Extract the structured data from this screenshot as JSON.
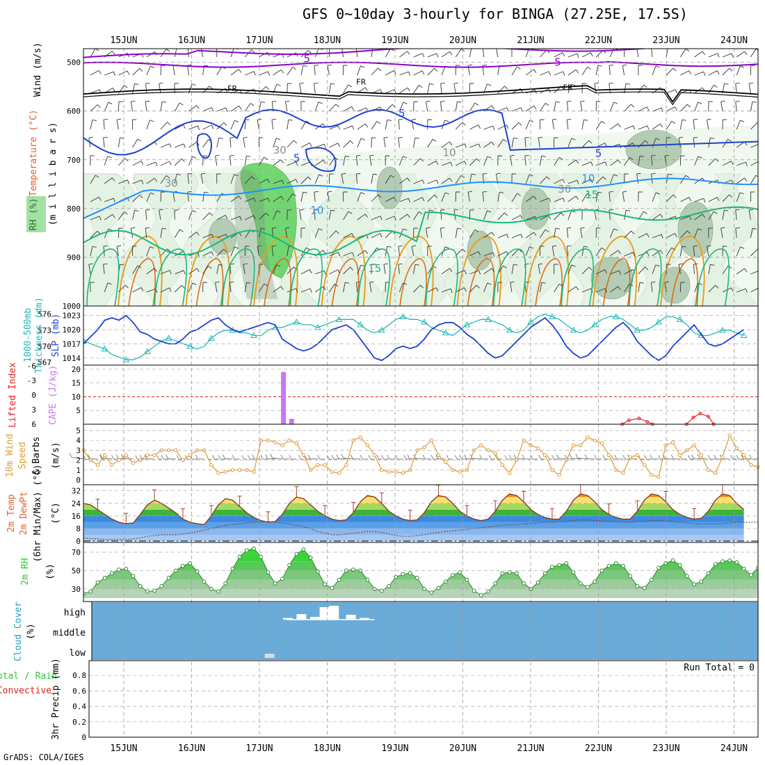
{
  "title": "GFS 0~10day 3-hourly for BINGA (27.25E, 17.5S)",
  "credit": "GrADS: COLA/IGES",
  "colors": {
    "purple": "#8b00c8",
    "black": "#000000",
    "blue": "#1c3fd0",
    "lightblue": "#1e90ff",
    "green": "#16b87a",
    "orange": "#e8a020",
    "rh_light": "#e4f2e4",
    "rh_mid": "#b4ccb4",
    "rh_dark": "#7a967a",
    "rh_green": "#55d055",
    "slp": "#1c3fd0",
    "thick": "#20b8b8",
    "cape": "#c878f0",
    "li": "#e02020",
    "wind10": "#e09a30",
    "cloud": "#6aabd8",
    "temp_hot": "#e89018",
    "temp_warm": "#f8e070",
    "temp_green": "#3cb43c",
    "temp_cool": "#3a8ae0",
    "temp_cold": "#a8c8f0",
    "rh2m": "#30c830"
  },
  "chart_data": {
    "type": "meteogram",
    "date_labels": [
      "15JUN",
      "16JUN",
      "17JUN",
      "18JUN",
      "19JUN",
      "20JUN",
      "21JUN",
      "22JUN",
      "23JUN",
      "24JUN"
    ],
    "panels": [
      {
        "name": "upper-air",
        "ylabels": [
          "Wind (m/s)",
          "Temperature (°C)",
          "RH (%)",
          "(m i l l i b a r s)"
        ],
        "yticks": [
          "500",
          "600",
          "700",
          "800",
          "900",
          "1000"
        ],
        "contour_labels": [
          {
            "text": "5",
            "day": 2.7,
            "p": 493,
            "series": "purple"
          },
          {
            "text": "5",
            "day": 6.4,
            "p": 500,
            "series": "purple"
          },
          {
            "text": "FR",
            "day": 1.6,
            "p": 552,
            "series": "black"
          },
          {
            "text": "FR",
            "day": 3.5,
            "p": 538,
            "series": "black"
          },
          {
            "text": "FR",
            "day": 6.55,
            "p": 550,
            "series": "black"
          },
          {
            "text": "5",
            "day": 4.1,
            "p": 605,
            "series": "blue"
          },
          {
            "text": "5",
            "day": 7.0,
            "p": 687,
            "series": "blue"
          },
          {
            "text": "5",
            "day": 2.55,
            "p": 697,
            "series": "blue"
          },
          {
            "text": "10",
            "day": 2.85,
            "p": 804,
            "series": "lightblue"
          },
          {
            "text": "10",
            "day": 6.85,
            "p": 738,
            "series": "lightblue"
          },
          {
            "text": "15",
            "day": 6.9,
            "p": 772,
            "series": "green"
          },
          {
            "text": "15",
            "day": 3.7,
            "p": 923,
            "series": "green"
          },
          {
            "text": "30",
            "day": 2.3,
            "p": 680,
            "series": "rh"
          },
          {
            "text": "30",
            "day": 0.7,
            "p": 748,
            "series": "rh"
          },
          {
            "text": "30",
            "day": 6.5,
            "p": 760,
            "series": "rh"
          },
          {
            "text": "10",
            "day": 4.8,
            "p": 685,
            "series": "rh"
          }
        ]
      },
      {
        "name": "slp-thickness",
        "ylabels": [
          "SLP (mb)",
          "1000-500mb",
          "Thickness (dm)"
        ],
        "left_ticks": [
          "576",
          "573",
          "570",
          "567"
        ],
        "right_ticks": [
          "1023",
          "1020",
          "1017",
          "1014"
        ],
        "slp": [
          1017,
          1018.5,
          1020,
          1022,
          1022.5,
          1022,
          1023,
          1021.5,
          1019.5,
          1019,
          1018,
          1017.5,
          1017,
          1017,
          1018,
          1019.5,
          1020,
          1021,
          1022,
          1022.5,
          1021,
          1020,
          1019.5,
          1020,
          1020.5,
          1021,
          1021.5,
          1021,
          1018,
          1017,
          1016,
          1015.5,
          1016,
          1017,
          1018.5,
          1020,
          1020.5,
          1021,
          1020,
          1018,
          1016,
          1014,
          1013.5,
          1014.5,
          1016,
          1016.5,
          1016,
          1016.5,
          1018,
          1020,
          1021,
          1021.5,
          1021.5,
          1020.5,
          1019,
          1018,
          1016.5,
          1015,
          1014,
          1014.5,
          1016,
          1017.5,
          1019,
          1020.5,
          1021.5,
          1022.5,
          1021,
          1019,
          1016.5,
          1015,
          1014,
          1014.5,
          1016,
          1017.5,
          1019,
          1020.5,
          1021.5,
          1020,
          1017.5,
          1016,
          1014.5,
          1013.5,
          1014.5,
          1016.5,
          1018,
          1019.5,
          1021,
          1019,
          1017,
          1016.5,
          1017,
          1018,
          1019,
          1020
        ],
        "thickness": [
          571,
          570.5,
          570,
          569.5,
          568.5,
          568,
          567.5,
          567.5,
          568,
          569,
          570,
          571,
          571.5,
          571,
          570.5,
          570,
          569.5,
          570,
          571.5,
          572.5,
          573,
          573,
          572.5,
          572.5,
          572,
          572,
          573,
          573.5,
          573.5,
          574,
          574.5,
          574,
          574,
          573.5,
          574,
          574.5,
          575,
          575,
          575,
          574,
          573,
          572.5,
          573,
          574,
          575,
          575.5,
          575,
          575,
          574.5,
          573.5,
          573,
          572.5,
          572,
          573,
          574,
          574.5,
          575,
          575,
          574.5,
          574,
          573,
          572.5,
          573,
          574.5,
          575.5,
          576,
          575.5,
          575,
          574,
          573,
          572.5,
          573,
          574,
          575,
          575.5,
          575.5,
          575,
          574,
          573,
          573,
          573.5,
          574.5,
          575.5,
          575.5,
          575,
          574,
          572.5,
          572,
          572,
          572.5,
          573,
          573,
          572.5,
          572
        ]
      },
      {
        "name": "cape-li",
        "ylabels": [
          "Lifted Index",
          "CAPE (J/kg)"
        ],
        "left_ticks": [
          "-6",
          "-3",
          "0",
          "3",
          "6"
        ],
        "right_ticks": [
          "20",
          "15",
          "10",
          "5"
        ],
        "cape_bars": [
          {
            "day": 2.35,
            "value": 19
          },
          {
            "day": 2.47,
            "value": 2
          }
        ],
        "lifted_index": [
          {
            "day": 7.35,
            "value": 6
          },
          {
            "day": 7.45,
            "value": 5.2
          },
          {
            "day": 7.6,
            "value": 4.8
          },
          {
            "day": 7.72,
            "value": 5.5
          },
          {
            "day": 7.8,
            "value": 6
          },
          {
            "day": 8.3,
            "value": 6
          },
          {
            "day": 8.4,
            "value": 4.6
          },
          {
            "day": 8.5,
            "value": 3.8
          },
          {
            "day": 8.62,
            "value": 4.4
          },
          {
            "day": 8.7,
            "value": 6
          }
        ]
      },
      {
        "name": "wind-10m",
        "ylabels": [
          "10m Wind",
          "Speed",
          "& Barbs",
          "(m/s)"
        ],
        "yticks": [
          "0",
          "1",
          "2",
          "3",
          "4",
          "5"
        ],
        "speed": [
          3,
          2,
          1.5,
          2.5,
          1.5,
          2,
          2.5,
          1.7,
          2,
          2.5,
          2.5,
          3,
          3,
          3,
          2,
          2.5,
          3,
          3,
          1.5,
          0.7,
          0.8,
          1,
          1,
          1,
          0.8,
          4,
          4,
          3.8,
          3.5,
          4,
          3.7,
          2.5,
          1,
          1.5,
          1.5,
          0.8,
          0.7,
          1.5,
          4,
          4.3,
          3.5,
          2.5,
          1,
          0.8,
          0.8,
          0.7,
          1,
          3,
          3.3,
          4,
          2.5,
          1.8,
          1,
          0.8,
          1,
          3,
          3.5,
          3,
          2.7,
          1.5,
          0.7,
          2,
          4,
          3.5,
          3.2,
          2.5,
          1,
          0.5,
          2,
          3.5,
          3.5,
          4.3,
          4,
          3.7,
          2.5,
          1,
          0.7,
          2.3,
          2.5,
          1.5,
          0.5,
          0.3,
          3.5,
          3.8,
          2.5,
          3,
          3.5,
          2.5,
          1,
          0.7,
          2.3,
          4.5,
          3.2,
          2.5,
          1.5,
          1.3
        ],
        "barb_angles": [
          40,
          70,
          60,
          80,
          50,
          70,
          60,
          50,
          80,
          70,
          60,
          80,
          70,
          60,
          75,
          80,
          70,
          65,
          80,
          75,
          70,
          60,
          70,
          80,
          75,
          65,
          70,
          60,
          50,
          65,
          70,
          80,
          75,
          60,
          70,
          80,
          70,
          60,
          50,
          60,
          70,
          75,
          80,
          70,
          65,
          70,
          75,
          60,
          55,
          65,
          70,
          60,
          75,
          80,
          70,
          60,
          55,
          65,
          75,
          70,
          80,
          70,
          60,
          65,
          70,
          75,
          80,
          70,
          60,
          65,
          55,
          50,
          60,
          70,
          75,
          80,
          65,
          70,
          60,
          75,
          70,
          65,
          70,
          60,
          65,
          70,
          75,
          60,
          55,
          70,
          65,
          60,
          75,
          70,
          60,
          65
        ]
      },
      {
        "name": "temperature-2m",
        "ylabels": [
          "2m Temp",
          "2m DewPt",
          "(6hr Min/Max) (°C)"
        ],
        "yticks": [
          "0",
          "8",
          "16",
          "24",
          "32"
        ],
        "temp": [
          24,
          23,
          20,
          17,
          14,
          12,
          11,
          11.5,
          17,
          23,
          26,
          24,
          21,
          18,
          14,
          12,
          11,
          10.5,
          16,
          23,
          27,
          26,
          22,
          18,
          15,
          13,
          12,
          12.5,
          17,
          24,
          28,
          27,
          23,
          19,
          16,
          14,
          13,
          13.5,
          18,
          25,
          29,
          28,
          24,
          19,
          16,
          14,
          13,
          13.5,
          18,
          25,
          29,
          28,
          24,
          19,
          16,
          14,
          13,
          14,
          19,
          26,
          30,
          29,
          25,
          20,
          17,
          15,
          14,
          14,
          19,
          26,
          30,
          29,
          25,
          20,
          17,
          15,
          14,
          14,
          19,
          26,
          30,
          29,
          25,
          20,
          17,
          15,
          14,
          14.5,
          19,
          26,
          30,
          29,
          24,
          20
        ],
        "dewpoint": [
          2,
          1.5,
          1.5,
          1,
          1,
          1,
          1,
          1.5,
          2,
          3,
          3.5,
          4,
          4,
          4,
          4.5,
          5,
          6,
          7,
          8,
          9,
          10,
          10.5,
          11,
          11.5,
          12,
          12,
          12.5,
          12,
          11.5,
          11,
          10,
          9,
          8,
          6,
          5,
          4,
          4,
          4.5,
          5,
          5.5,
          6,
          6,
          5.5,
          4.5,
          3.5,
          3,
          3,
          3.5,
          4,
          5,
          5.5,
          6,
          6.5,
          7,
          7.5,
          8,
          8.5,
          9,
          9.5,
          10,
          10.5,
          10.5,
          11,
          11,
          11.5,
          12,
          12,
          12.5,
          12.5,
          13,
          13.5,
          13.5,
          13,
          13,
          12.5,
          12.5,
          12,
          12,
          12.5,
          12.5,
          13,
          13,
          13,
          12.5,
          12,
          11.5,
          11,
          11,
          11,
          11,
          11,
          11.5,
          12,
          12,
          12,
          12
        ]
      },
      {
        "name": "rh-2m",
        "ylabels": [
          "2m RH",
          "(%)"
        ],
        "yticks": [
          "30",
          "50",
          "70"
        ],
        "rh": [
          25,
          27,
          37,
          42,
          47,
          51,
          52,
          44,
          33,
          27,
          28,
          33,
          42,
          50,
          55,
          58,
          49,
          38,
          30,
          27,
          36,
          52,
          65,
          72,
          74,
          65,
          48,
          36,
          41,
          56,
          68,
          73,
          64,
          49,
          35,
          31,
          40,
          50,
          51,
          50,
          40,
          30,
          28,
          33,
          43,
          46,
          47,
          42,
          30,
          26,
          31,
          38,
          45,
          48,
          40,
          28,
          23,
          27,
          36,
          47,
          48,
          47,
          36,
          30,
          37,
          47,
          54,
          56,
          58,
          48,
          36,
          32,
          38,
          50,
          55,
          58,
          55,
          44,
          33,
          31,
          40,
          53,
          58,
          61,
          56,
          44,
          35,
          38,
          47,
          57,
          60,
          61,
          59,
          52,
          45,
          53
        ],
        "color_bands": [
          {
            "min": 20,
            "max": 30,
            "color": "#b8d4b8"
          },
          {
            "min": 30,
            "max": 40,
            "color": "#9ccc9c"
          },
          {
            "min": 40,
            "max": 50,
            "color": "#7ac87a"
          },
          {
            "min": 50,
            "max": 60,
            "color": "#58c858"
          },
          {
            "min": 60,
            "max": 70,
            "color": "#38d438"
          },
          {
            "min": 70,
            "max": 80,
            "color": "#18e818"
          }
        ]
      },
      {
        "name": "cloud-cover",
        "ylabels": [
          "Cloud Cover",
          "(%)"
        ],
        "levels": [
          "high",
          "middle",
          "low"
        ],
        "bars": [
          {
            "day": 2.15,
            "level": "low",
            "value": 0.3
          },
          {
            "day": 2.42,
            "level": "high",
            "value": 0.12
          },
          {
            "day": 2.62,
            "level": "high",
            "value": 0.4
          },
          {
            "day": 2.82,
            "level": "high",
            "value": 0.2
          },
          {
            "day": 2.96,
            "level": "high",
            "value": 0.9
          },
          {
            "day": 3.1,
            "level": "high",
            "value": 1
          },
          {
            "day": 3.35,
            "level": "high",
            "value": 0.35
          },
          {
            "day": 3.55,
            "level": "high",
            "value": 0.12
          }
        ]
      },
      {
        "name": "precip",
        "ylabels": [
          "Total / Rain",
          "Convective",
          "3hr Precip (mm)"
        ],
        "yticks": [
          "0",
          "0.2",
          "0.4",
          "0.6",
          "0.8"
        ],
        "run_total": "Run Total = 0",
        "values": []
      }
    ]
  }
}
